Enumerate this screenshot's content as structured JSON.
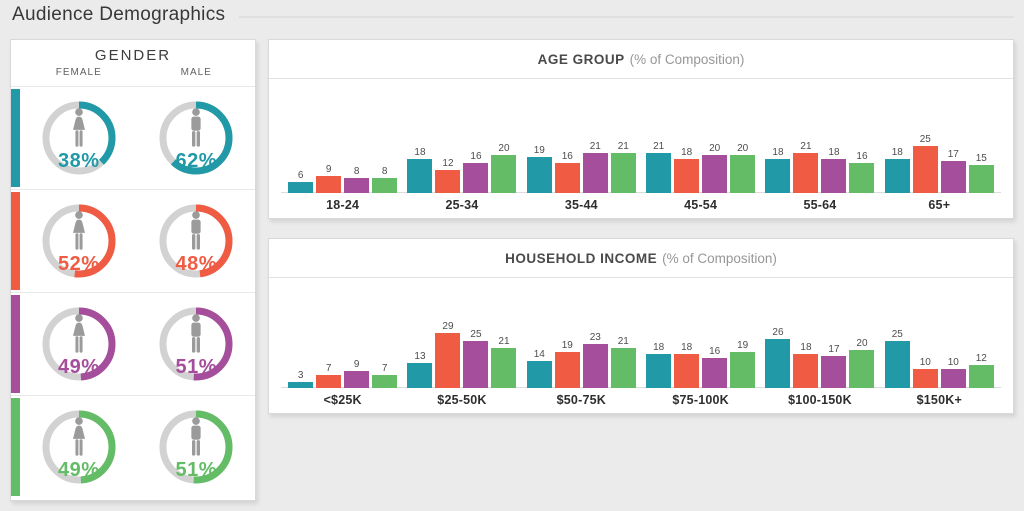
{
  "page": {
    "title": "Audience Demographics"
  },
  "colors": {
    "teal": "#2199A6",
    "red": "#EF5B43",
    "purple": "#A44E9C",
    "green": "#64BC66",
    "track": "#D2D2D2",
    "icon": "#9B9B9B"
  },
  "gender": {
    "title": "GENDER",
    "col_female": "FEMALE",
    "col_male": "MALE",
    "rows": [
      {
        "color": "teal",
        "female": {
          "pct": 38,
          "label": "38%"
        },
        "male": {
          "pct": 62,
          "label": "62%"
        }
      },
      {
        "color": "red",
        "female": {
          "pct": 52,
          "label": "52%"
        },
        "male": {
          "pct": 48,
          "label": "48%"
        }
      },
      {
        "color": "purple",
        "female": {
          "pct": 49,
          "label": "49%"
        },
        "male": {
          "pct": 51,
          "label": "51%"
        }
      },
      {
        "color": "green",
        "female": {
          "pct": 49,
          "label": "49%"
        },
        "male": {
          "pct": 51,
          "label": "51%"
        }
      }
    ]
  },
  "chart_data": [
    {
      "type": "bar",
      "title": "AGE GROUP",
      "subtitle": "(% of Composition)",
      "categories": [
        "18-24",
        "25-34",
        "35-44",
        "45-54",
        "55-64",
        "65+"
      ],
      "series": [
        {
          "name": "teal-series",
          "color": "teal",
          "values": [
            6,
            18,
            19,
            21,
            18,
            18
          ]
        },
        {
          "name": "red-series",
          "color": "red",
          "values": [
            9,
            12,
            16,
            18,
            21,
            25
          ]
        },
        {
          "name": "purple-series",
          "color": "purple",
          "values": [
            8,
            16,
            21,
            20,
            18,
            17
          ]
        },
        {
          "name": "green-series",
          "color": "green",
          "values": [
            8,
            20,
            21,
            20,
            16,
            15
          ]
        }
      ],
      "ylim": [
        0,
        30
      ],
      "grid": false,
      "legend": "none",
      "value_labels": true
    },
    {
      "type": "bar",
      "title": "HOUSEHOLD INCOME",
      "subtitle": "(% of Composition)",
      "categories": [
        "<$25K",
        "$25-50K",
        "$50-75K",
        "$75-100K",
        "$100-150K",
        "$150K+"
      ],
      "series": [
        {
          "name": "teal-series",
          "color": "teal",
          "values": [
            3,
            13,
            14,
            18,
            26,
            25
          ]
        },
        {
          "name": "red-series",
          "color": "red",
          "values": [
            7,
            29,
            19,
            18,
            18,
            10
          ]
        },
        {
          "name": "purple-series",
          "color": "purple",
          "values": [
            9,
            25,
            23,
            16,
            17,
            10
          ]
        },
        {
          "name": "green-series",
          "color": "green",
          "values": [
            7,
            21,
            21,
            19,
            20,
            12
          ]
        }
      ],
      "ylim": [
        0,
        30
      ],
      "grid": false,
      "legend": "none",
      "value_labels": true
    }
  ]
}
